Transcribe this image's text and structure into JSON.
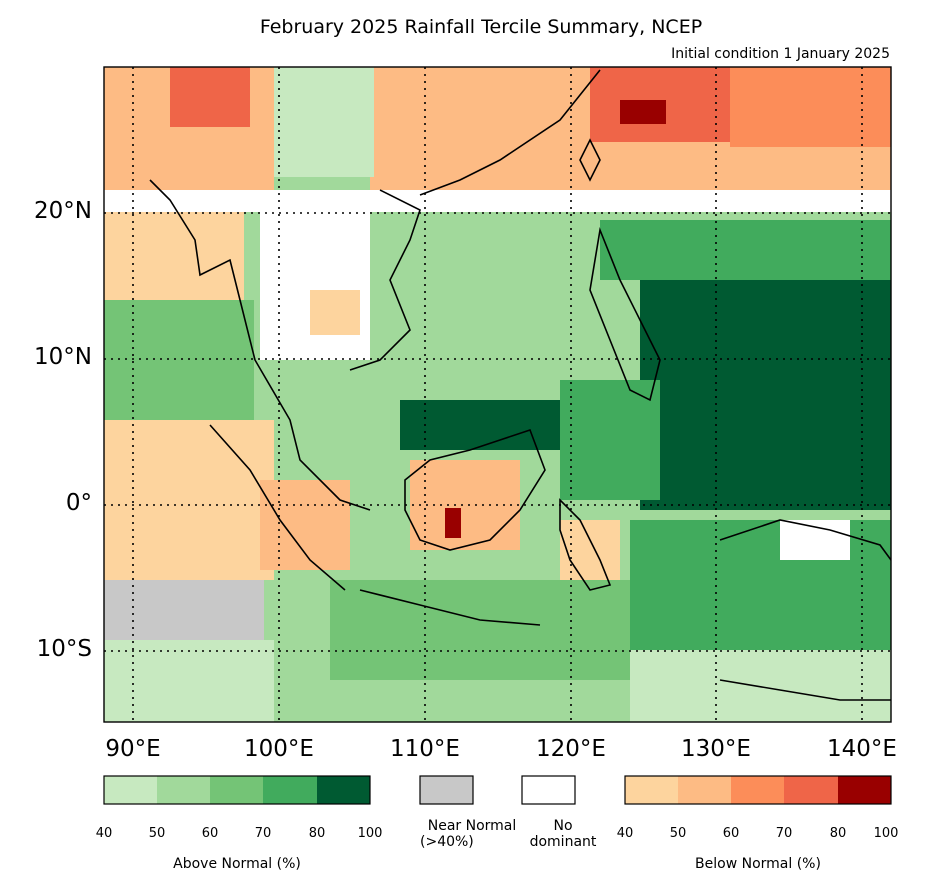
{
  "title": "February 2025 Rainfall Tercile Summary, NCEP",
  "subtitle": "Initial condition 1 January 2025",
  "map": {
    "lon_range": [
      88,
      142
    ],
    "lat_range": [
      -15,
      30
    ],
    "lat_ticks": [
      {
        "value": 20,
        "label": "20°N"
      },
      {
        "value": 10,
        "label": "10°N"
      },
      {
        "value": 0,
        "label": "0°"
      },
      {
        "value": -10,
        "label": "10°S"
      }
    ],
    "lon_ticks": [
      {
        "value": 90,
        "label": "90°E"
      },
      {
        "value": 100,
        "label": "100°E"
      },
      {
        "value": 110,
        "label": "110°E"
      },
      {
        "value": 120,
        "label": "120°E"
      },
      {
        "value": 130,
        "label": "130°E"
      },
      {
        "value": 140,
        "label": "140°E"
      }
    ],
    "grid": "dotted"
  },
  "legend": {
    "above": {
      "label": "Above Normal (%)",
      "ticks": [
        "40",
        "50",
        "60",
        "70",
        "80",
        "100"
      ],
      "colors": [
        "#c7e9c0",
        "#a1d99b",
        "#74c476",
        "#41ab5d",
        "#005a32"
      ]
    },
    "near": {
      "label_line1": "Near Normal",
      "label_line2": "(>40%)",
      "color": "#c8c8c8"
    },
    "none": {
      "label_line1": "No",
      "label_line2": "dominant",
      "color": "#ffffff"
    },
    "below": {
      "label": "Below Normal (%)",
      "ticks": [
        "40",
        "50",
        "60",
        "70",
        "80",
        "100"
      ],
      "colors": [
        "#fdd49e",
        "#fdbb84",
        "#fc8d59",
        "#ef6548",
        "#990000"
      ]
    }
  }
}
